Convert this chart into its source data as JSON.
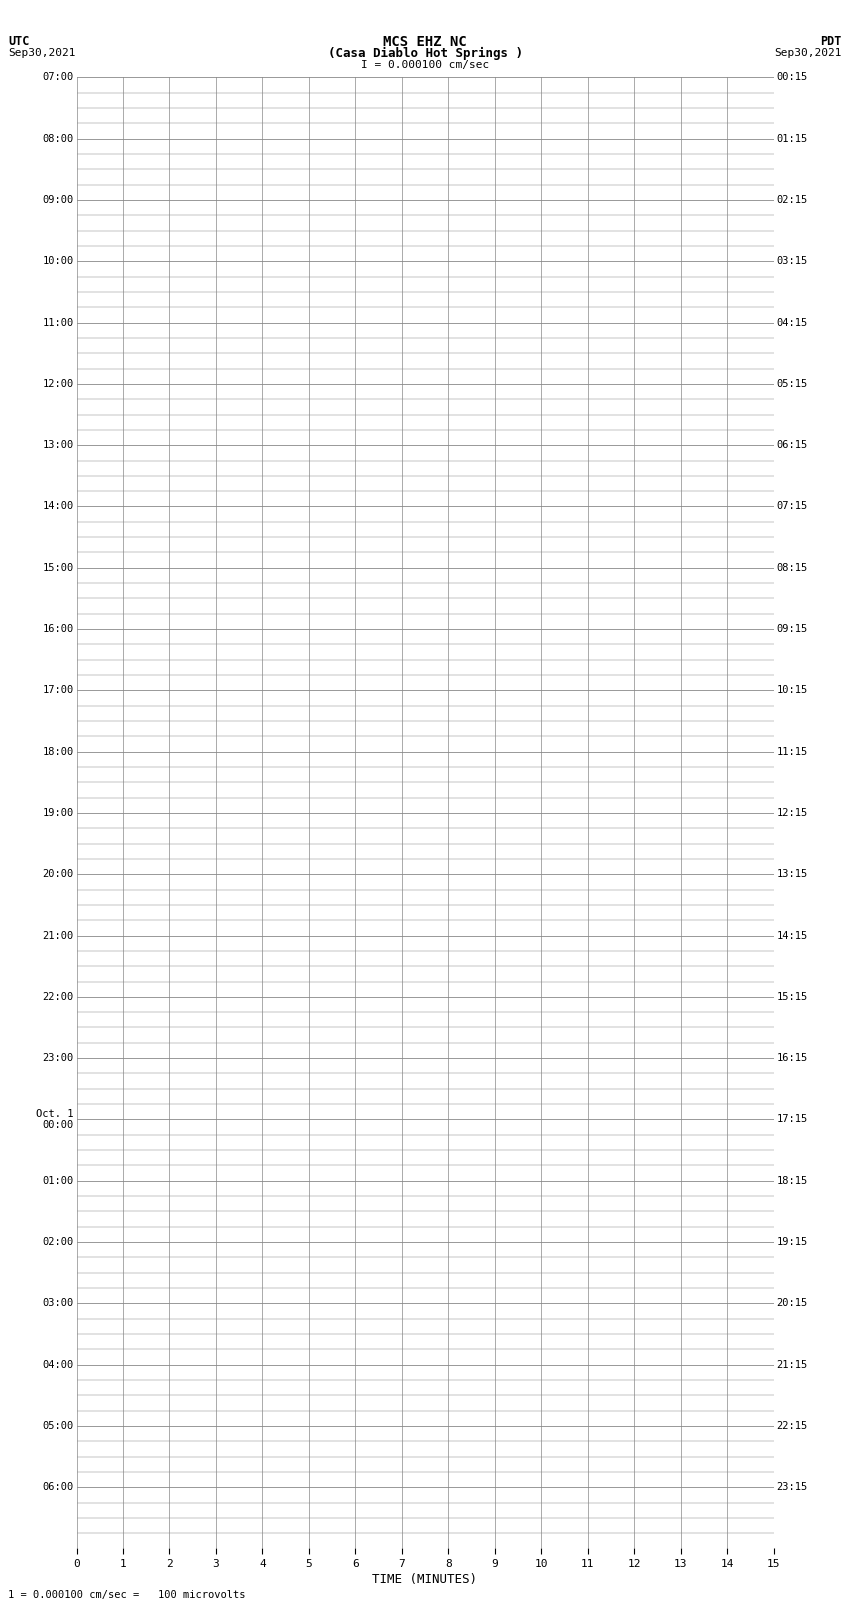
{
  "title_line1": "MCS EHZ NC",
  "title_line2": "(Casa Diablo Hot Springs )",
  "title_line3": "I = 0.000100 cm/sec",
  "left_label_top": "UTC",
  "left_label_date": "Sep30,2021",
  "right_label_top": "PDT",
  "right_label_date": "Sep30,2021",
  "bottom_label": "TIME (MINUTES)",
  "footnote": "1 = 0.000100 cm/sec =   100 microvolts",
  "utc_labels": [
    [
      "07:00",
      0
    ],
    [
      "08:00",
      4
    ],
    [
      "09:00",
      8
    ],
    [
      "10:00",
      12
    ],
    [
      "11:00",
      16
    ],
    [
      "12:00",
      20
    ],
    [
      "13:00",
      24
    ],
    [
      "14:00",
      28
    ],
    [
      "15:00",
      32
    ],
    [
      "16:00",
      36
    ],
    [
      "17:00",
      40
    ],
    [
      "18:00",
      44
    ],
    [
      "19:00",
      48
    ],
    [
      "20:00",
      52
    ],
    [
      "21:00",
      56
    ],
    [
      "22:00",
      60
    ],
    [
      "23:00",
      64
    ],
    [
      "Oct. 1\n00:00",
      68
    ],
    [
      "01:00",
      72
    ],
    [
      "02:00",
      76
    ],
    [
      "03:00",
      80
    ],
    [
      "04:00",
      84
    ],
    [
      "05:00",
      88
    ],
    [
      "06:00",
      92
    ]
  ],
  "pdt_labels": [
    [
      "00:15",
      0
    ],
    [
      "01:15",
      4
    ],
    [
      "02:15",
      8
    ],
    [
      "03:15",
      12
    ],
    [
      "04:15",
      16
    ],
    [
      "05:15",
      20
    ],
    [
      "06:15",
      24
    ],
    [
      "07:15",
      28
    ],
    [
      "08:15",
      32
    ],
    [
      "09:15",
      36
    ],
    [
      "10:15",
      40
    ],
    [
      "11:15",
      44
    ],
    [
      "12:15",
      48
    ],
    [
      "13:15",
      52
    ],
    [
      "14:15",
      56
    ],
    [
      "15:15",
      60
    ],
    [
      "16:15",
      64
    ],
    [
      "17:15",
      68
    ],
    [
      "18:15",
      72
    ],
    [
      "19:15",
      76
    ],
    [
      "20:15",
      80
    ],
    [
      "21:15",
      84
    ],
    [
      "22:15",
      88
    ],
    [
      "23:15",
      92
    ]
  ],
  "n_hour_groups": 24,
  "rows_per_hour": 4,
  "quiet_before_row": 35,
  "row_colors": [
    "#008000",
    "#000000",
    "#cc0000",
    "#0000cc"
  ],
  "background_color": "#ffffff",
  "grid_color": "#888888",
  "minutes": 15
}
